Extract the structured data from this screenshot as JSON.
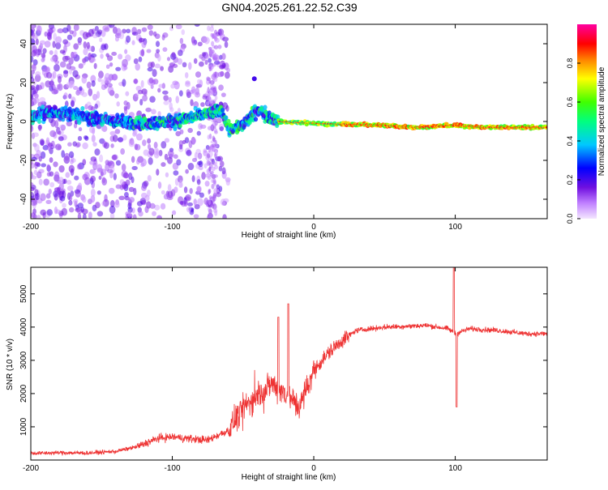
{
  "title": "GN04.2025.261.22.52.C39",
  "chart_data": [
    {
      "type": "heatmap",
      "xlabel": "Height of straight line (km)",
      "ylabel": "Frequency (Hz)",
      "xlim": [
        -200,
        165
      ],
      "ylim": [
        -50,
        50
      ],
      "xticks": [
        -200,
        -100,
        0,
        100
      ],
      "yticks": [
        -40,
        -20,
        0,
        20,
        40
      ],
      "colorbar": {
        "label": "Normalized spectral amplitude",
        "range": [
          0,
          1
        ],
        "ticks": [
          "0.0",
          "0.2",
          "0.4",
          "0.6",
          "0.8"
        ]
      },
      "dominant_frequency_track": [
        {
          "x": -200,
          "y": 3
        },
        {
          "x": -180,
          "y": 5
        },
        {
          "x": -160,
          "y": 2
        },
        {
          "x": -140,
          "y": 0
        },
        {
          "x": -120,
          "y": -1
        },
        {
          "x": -100,
          "y": 0
        },
        {
          "x": -80,
          "y": 3
        },
        {
          "x": -65,
          "y": 6
        },
        {
          "x": -60,
          "y": -4
        },
        {
          "x": -50,
          "y": -2
        },
        {
          "x": -40,
          "y": 6
        },
        {
          "x": -30,
          "y": 2
        },
        {
          "x": -25,
          "y": 0
        },
        {
          "x": 0,
          "y": -1
        },
        {
          "x": 50,
          "y": -2
        },
        {
          "x": 70,
          "y": -3
        },
        {
          "x": 100,
          "y": -2
        },
        {
          "x": 120,
          "y": -3
        },
        {
          "x": 165,
          "y": -3
        }
      ]
    },
    {
      "type": "line",
      "xlabel": "Height of straight line (km)",
      "ylabel": "SNR (10 * v/v)",
      "xlim": [
        -200,
        165
      ],
      "ylim": [
        0,
        5800
      ],
      "xticks": [
        -200,
        -100,
        0,
        100
      ],
      "yticks": [
        1000,
        2000,
        3000,
        4000,
        5000
      ],
      "series": [
        {
          "name": "SNR",
          "color": "#ee3333",
          "points": [
            {
              "x": -200,
              "y": 200
            },
            {
              "x": -180,
              "y": 220
            },
            {
              "x": -160,
              "y": 210
            },
            {
              "x": -140,
              "y": 260
            },
            {
              "x": -125,
              "y": 400
            },
            {
              "x": -110,
              "y": 650
            },
            {
              "x": -100,
              "y": 700
            },
            {
              "x": -90,
              "y": 650
            },
            {
              "x": -75,
              "y": 600
            },
            {
              "x": -60,
              "y": 900
            },
            {
              "x": -50,
              "y": 1600
            },
            {
              "x": -40,
              "y": 1900
            },
            {
              "x": -30,
              "y": 2300
            },
            {
              "x": -20,
              "y": 2000
            },
            {
              "x": -10,
              "y": 1600
            },
            {
              "x": 0,
              "y": 2700
            },
            {
              "x": 10,
              "y": 3200
            },
            {
              "x": 20,
              "y": 3600
            },
            {
              "x": 30,
              "y": 3900
            },
            {
              "x": 50,
              "y": 4000
            },
            {
              "x": 80,
              "y": 4050
            },
            {
              "x": 95,
              "y": 3950
            },
            {
              "x": 100,
              "y": 3800
            },
            {
              "x": 110,
              "y": 3950
            },
            {
              "x": 130,
              "y": 3900
            },
            {
              "x": 150,
              "y": 3800
            },
            {
              "x": 165,
              "y": 3800
            }
          ],
          "peaks": [
            {
              "x": -18,
              "y": 4700
            },
            {
              "x": -25,
              "y": 4300
            },
            {
              "x": 99,
              "y": 5800
            },
            {
              "x": 101,
              "y": 1600
            }
          ]
        }
      ]
    }
  ]
}
